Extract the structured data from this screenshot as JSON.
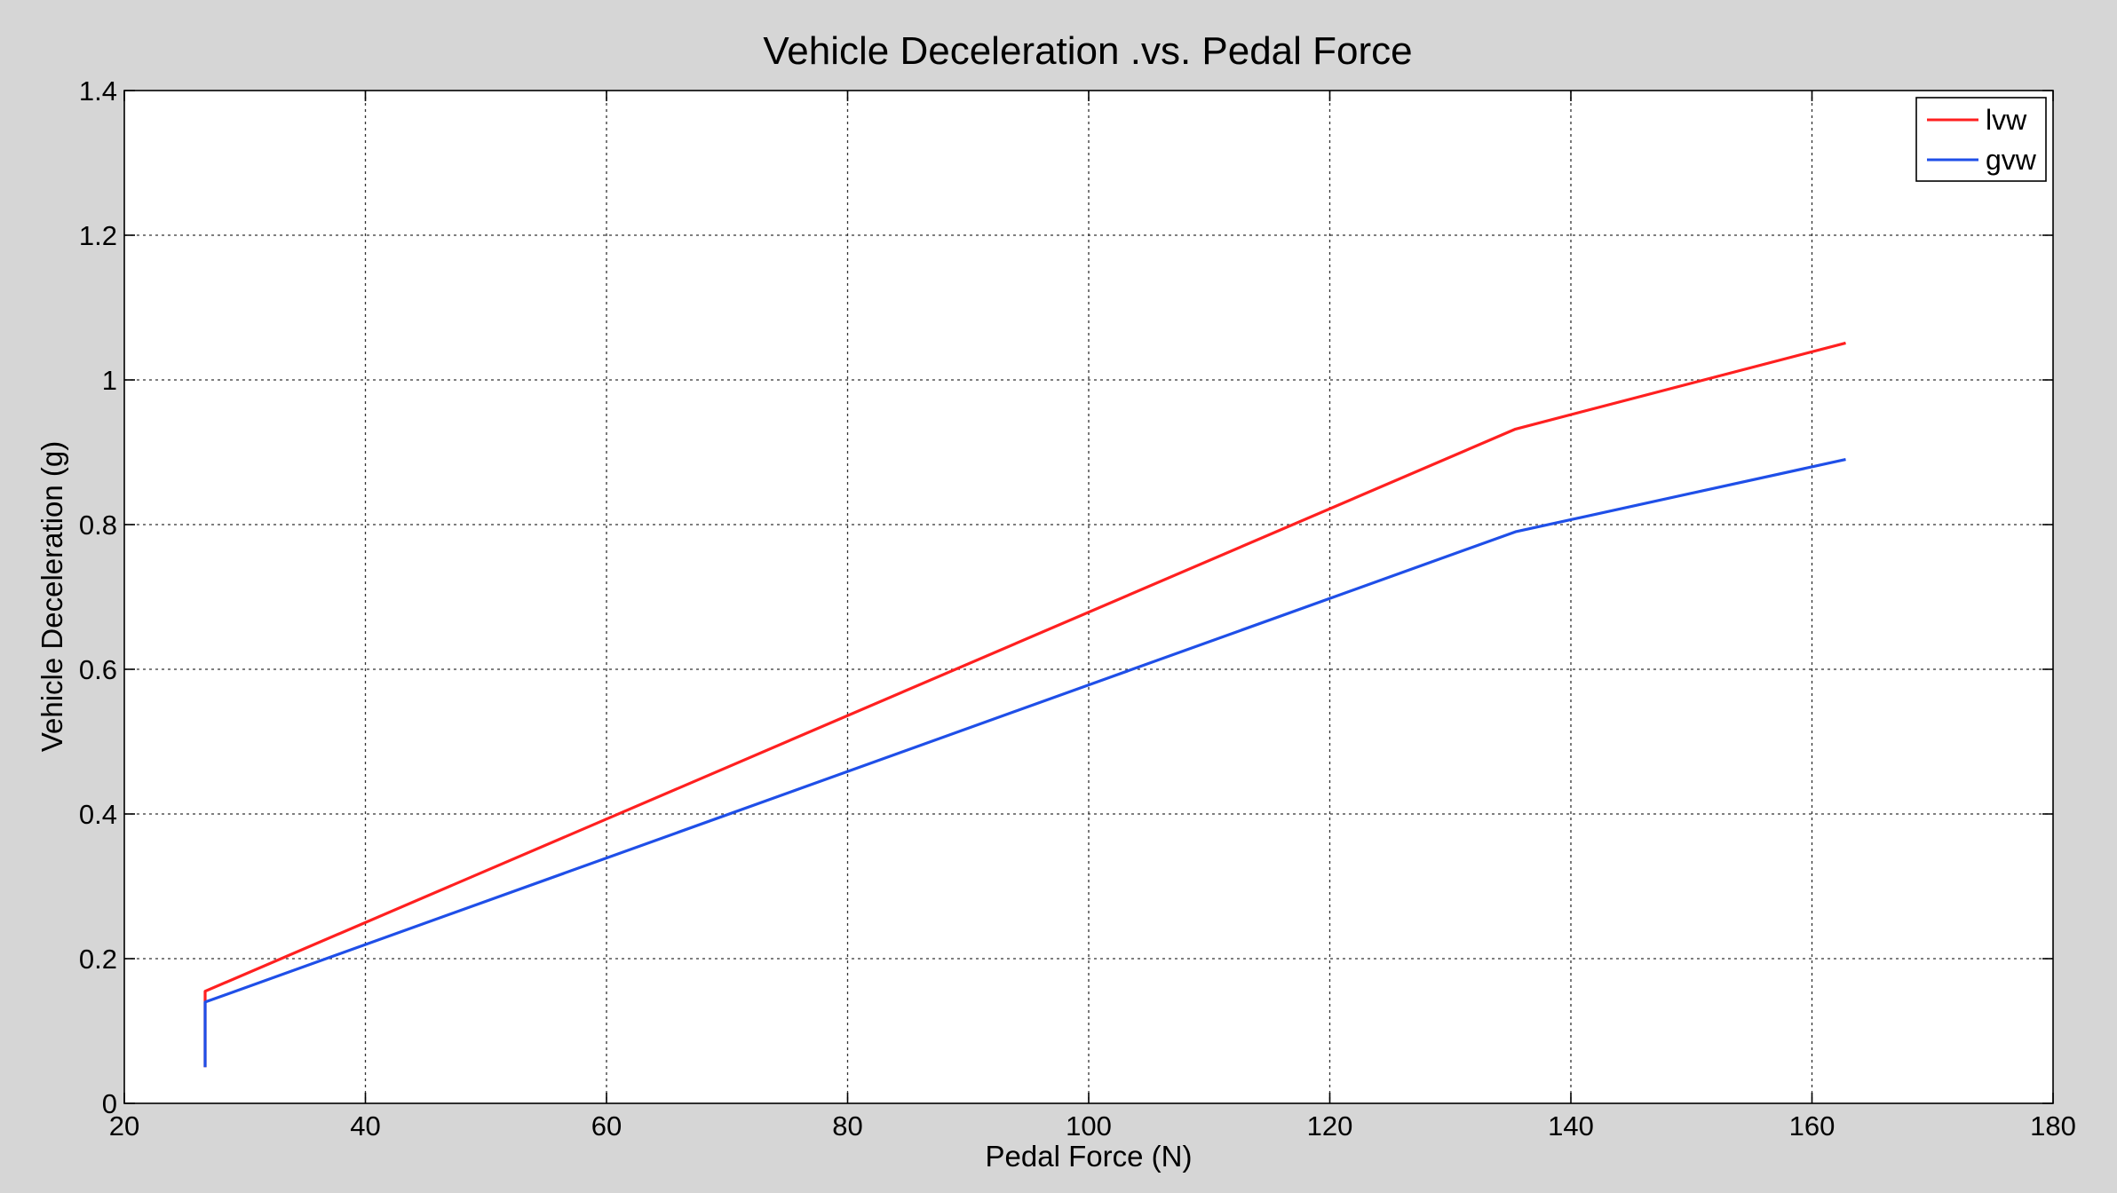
{
  "chart_data": {
    "type": "line",
    "title": "Vehicle Deceleration .vs. Pedal Force",
    "xlabel": "Pedal Force (N)",
    "ylabel": "Vehicle Deceleration (g)",
    "xlim": [
      20,
      180
    ],
    "ylim": [
      0,
      1.4
    ],
    "xticks": [
      20,
      40,
      60,
      80,
      100,
      120,
      140,
      160,
      180
    ],
    "yticks": [
      0,
      0.2,
      0.4,
      0.6,
      0.8,
      1,
      1.2,
      1.4
    ],
    "xtick_labels": [
      "20",
      "40",
      "60",
      "80",
      "100",
      "120",
      "140",
      "160",
      "180"
    ],
    "ytick_labels": [
      "0",
      "0.2",
      "0.4",
      "0.6",
      "0.8",
      "1",
      "1.2",
      "1.4"
    ],
    "grid": true,
    "legend_position": "top-right",
    "series": [
      {
        "name": "lvw",
        "color": "#ff2020",
        "points": [
          [
            26.7,
            0.05
          ],
          [
            26.7,
            0.155
          ],
          [
            135.4,
            0.932
          ],
          [
            162.8,
            1.051
          ]
        ]
      },
      {
        "name": "gvw",
        "color": "#1f4fe8",
        "points": [
          [
            26.7,
            0.05
          ],
          [
            26.7,
            0.14
          ],
          [
            135.4,
            0.79
          ],
          [
            162.8,
            0.89
          ]
        ]
      }
    ]
  }
}
